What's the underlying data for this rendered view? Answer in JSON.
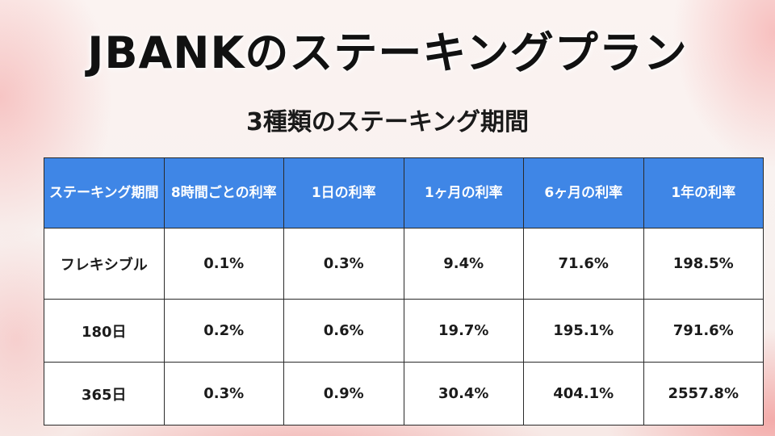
{
  "title": "JBANKのステーキングプラン",
  "subtitle": "3種類のステーキング期間",
  "colors": {
    "header_bg": "#3f86e6",
    "header_text": "#ffffff",
    "cell_bg": "#ffffff",
    "border": "#2a2a2a"
  },
  "table": {
    "headers": [
      "ステーキング期間",
      "8時間ごとの利率",
      "1日の利率",
      "1ヶ月の利率",
      "6ヶ月の利率",
      "1年の利率"
    ],
    "rows": [
      [
        "フレキシブル",
        "0.1%",
        "0.3%",
        "9.4%",
        "71.6%",
        "198.5%"
      ],
      [
        "180日",
        "0.2%",
        "0.6%",
        "19.7%",
        "195.1%",
        "791.6%"
      ],
      [
        "365日",
        "0.3%",
        "0.9%",
        "30.4%",
        "404.1%",
        "2557.8%"
      ]
    ]
  }
}
